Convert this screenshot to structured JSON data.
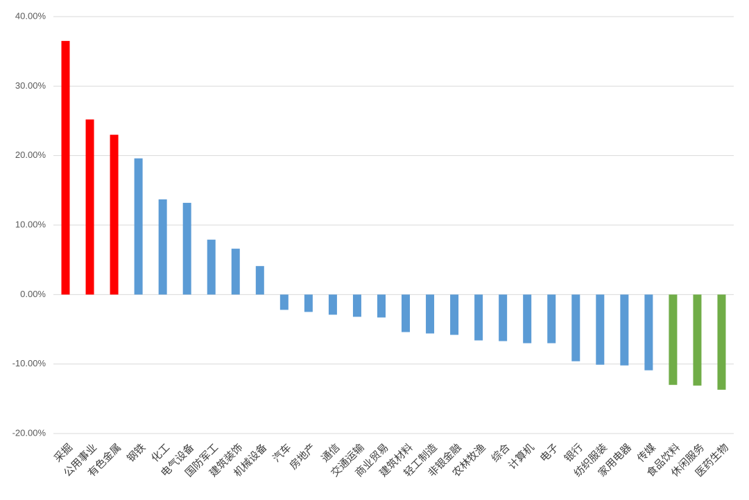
{
  "chart_data": {
    "type": "bar",
    "categories": [
      "采掘",
      "公用事业",
      "有色金属",
      "钢铁",
      "化工",
      "电气设备",
      "国防军工",
      "建筑装饰",
      "机械设备",
      "汽车",
      "房地产",
      "通信",
      "交通运输",
      "商业贸易",
      "建筑材料",
      "轻工制造",
      "非银金融",
      "农林牧渔",
      "综合",
      "计算机",
      "电子",
      "银行",
      "纺织服装",
      "家用电器",
      "传媒",
      "食品饮料",
      "休闲服务",
      "医药生物"
    ],
    "values": [
      36.5,
      25.2,
      23.0,
      19.6,
      13.7,
      13.2,
      7.9,
      6.6,
      4.1,
      -2.2,
      -2.5,
      -2.9,
      -3.2,
      -3.3,
      -5.4,
      -5.6,
      -5.8,
      -6.6,
      -6.7,
      -7.0,
      -7.0,
      -9.6,
      -10.1,
      -10.2,
      -10.9,
      -13.0,
      -13.1,
      -13.7
    ],
    "colors": [
      "#ff0000",
      "#ff0000",
      "#ff0000",
      "#5b9bd5",
      "#5b9bd5",
      "#5b9bd5",
      "#5b9bd5",
      "#5b9bd5",
      "#5b9bd5",
      "#5b9bd5",
      "#5b9bd5",
      "#5b9bd5",
      "#5b9bd5",
      "#5b9bd5",
      "#5b9bd5",
      "#5b9bd5",
      "#5b9bd5",
      "#5b9bd5",
      "#5b9bd5",
      "#5b9bd5",
      "#5b9bd5",
      "#5b9bd5",
      "#5b9bd5",
      "#5b9bd5",
      "#5b9bd5",
      "#70ad47",
      "#70ad47",
      "#70ad47"
    ],
    "ylim": [
      -20,
      40
    ],
    "yticks": [
      {
        "value": -20,
        "label": "-20.00%"
      },
      {
        "value": -10,
        "label": "-10.00%"
      },
      {
        "value": 0,
        "label": "0.00%"
      },
      {
        "value": 10,
        "label": "10.00%"
      },
      {
        "value": 20,
        "label": "20.00%"
      },
      {
        "value": 30,
        "label": "30.00%"
      },
      {
        "value": 40,
        "label": "40.00%"
      }
    ],
    "grid": true
  }
}
